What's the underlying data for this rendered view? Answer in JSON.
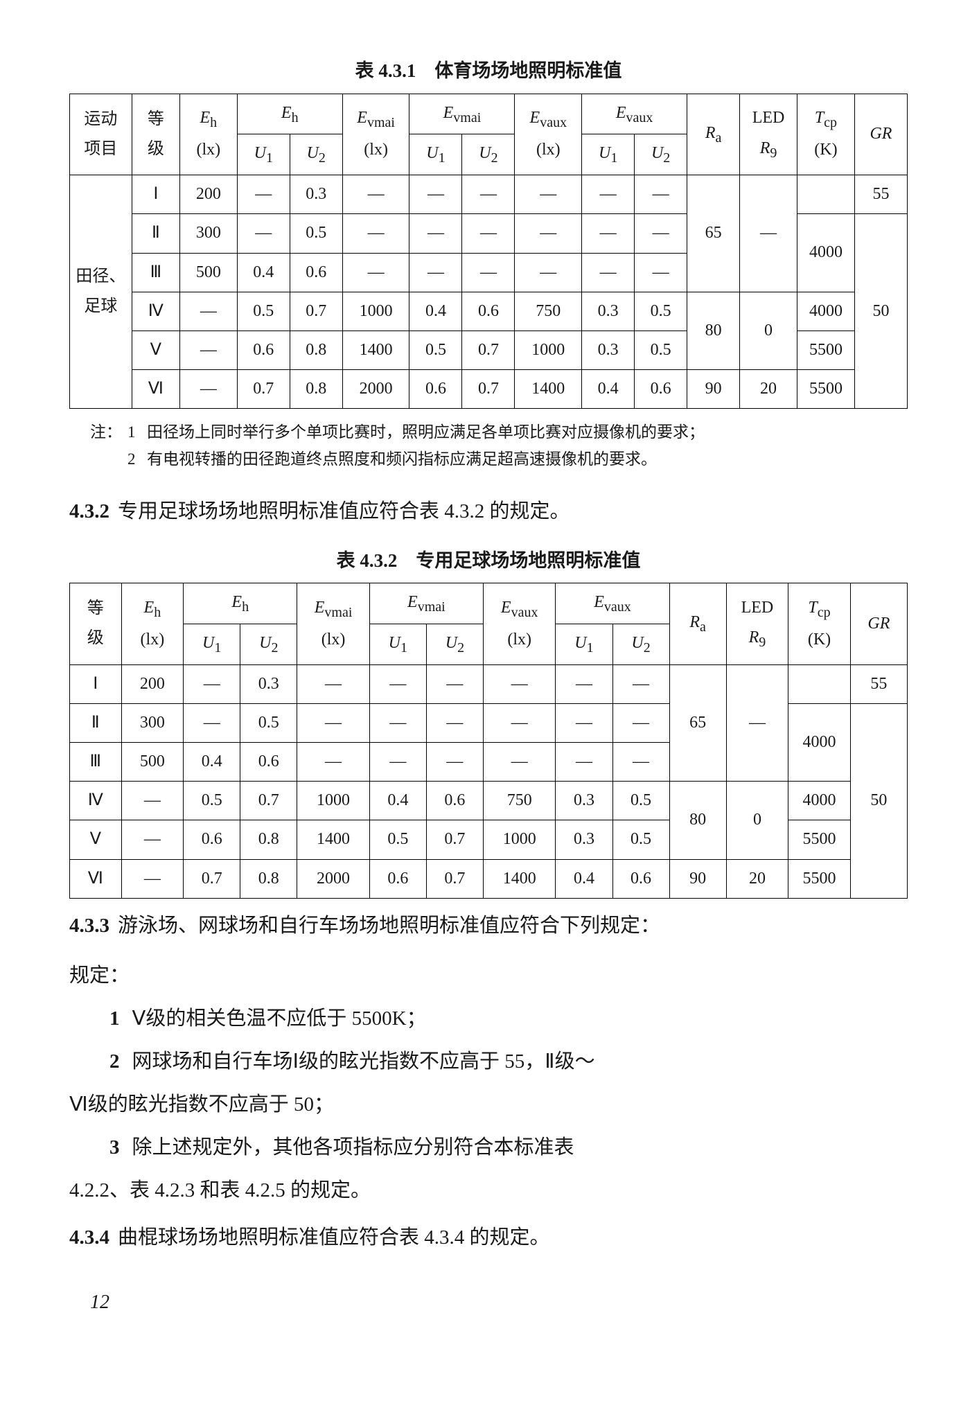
{
  "table1": {
    "caption": "表 4.3.1　体育场场地照明标准值",
    "head": {
      "sport": "运动\n项目",
      "grade": "等\n级",
      "Eh_lx": "Eₕ\n(lx)",
      "Eh_group": "Eₕ",
      "U1": "U₁",
      "U2": "U₂",
      "Evmai_lx": "E_vmai\n(lx)",
      "Evmai_group": "E_vmai",
      "Evaux_lx": "E_vaux\n(lx)",
      "Evaux_group": "E_vaux",
      "Ra": "Rₐ",
      "LED_R9": "LED\nR₉",
      "Tcp": "T_cp\n(K)",
      "GR": "GR"
    },
    "sport_label": "田径、\n足球",
    "rows": [
      {
        "g": "Ⅰ",
        "eh": "200",
        "u1": "—",
        "u2": "0.3",
        "evm": "—",
        "evm_u1": "—",
        "evm_u2": "—",
        "eva": "—",
        "eva_u1": "—",
        "eva_u2": "—"
      },
      {
        "g": "Ⅱ",
        "eh": "300",
        "u1": "—",
        "u2": "0.5",
        "evm": "—",
        "evm_u1": "—",
        "evm_u2": "—",
        "eva": "—",
        "eva_u1": "—",
        "eva_u2": "—"
      },
      {
        "g": "Ⅲ",
        "eh": "500",
        "u1": "0.4",
        "u2": "0.6",
        "evm": "—",
        "evm_u1": "—",
        "evm_u2": "—",
        "eva": "—",
        "eva_u1": "—",
        "eva_u2": "—"
      },
      {
        "g": "Ⅳ",
        "eh": "—",
        "u1": "0.5",
        "u2": "0.7",
        "evm": "1000",
        "evm_u1": "0.4",
        "evm_u2": "0.6",
        "eva": "750",
        "eva_u1": "0.3",
        "eva_u2": "0.5"
      },
      {
        "g": "Ⅴ",
        "eh": "—",
        "u1": "0.6",
        "u2": "0.8",
        "evm": "1400",
        "evm_u1": "0.5",
        "evm_u2": "0.7",
        "eva": "1000",
        "eva_u1": "0.3",
        "eva_u2": "0.5"
      },
      {
        "g": "Ⅵ",
        "eh": "—",
        "u1": "0.7",
        "u2": "0.8",
        "evm": "2000",
        "evm_u1": "0.6",
        "evm_u2": "0.7",
        "eva": "1400",
        "eva_u1": "0.4",
        "eva_u2": "0.6"
      }
    ],
    "ra": {
      "r1_3": "65",
      "r4_5": "80",
      "r6": "90"
    },
    "r9": {
      "r1_3": "—",
      "r4_5": "0",
      "r6": "20"
    },
    "tcp": {
      "r1": "",
      "r2_3": "4000",
      "r4": "4000",
      "r5": "5500",
      "r6": "5500"
    },
    "gr": {
      "r1": "55",
      "r2_6": "50"
    },
    "notes_label": "注：",
    "notes": [
      {
        "n": "1",
        "t": "田径场上同时举行多个单项比赛时，照明应满足各单项比赛对应摄像机的要求；"
      },
      {
        "n": "2",
        "t": "有电视转播的田径跑道终点照度和频闪指标应满足超高速摄像机的要求。"
      }
    ]
  },
  "sec432": {
    "num": "4.3.2",
    "text": "专用足球场场地照明标准值应符合表 4.3.2 的规定。"
  },
  "table2": {
    "caption": "表 4.3.2　专用足球场场地照明标准值",
    "rows": [
      {
        "g": "Ⅰ",
        "eh": "200",
        "u1": "—",
        "u2": "0.3",
        "evm": "—",
        "evm_u1": "—",
        "evm_u2": "—",
        "eva": "—",
        "eva_u1": "—",
        "eva_u2": "—"
      },
      {
        "g": "Ⅱ",
        "eh": "300",
        "u1": "—",
        "u2": "0.5",
        "evm": "—",
        "evm_u1": "—",
        "evm_u2": "—",
        "eva": "—",
        "eva_u1": "—",
        "eva_u2": "—"
      },
      {
        "g": "Ⅲ",
        "eh": "500",
        "u1": "0.4",
        "u2": "0.6",
        "evm": "—",
        "evm_u1": "—",
        "evm_u2": "—",
        "eva": "—",
        "eva_u1": "—",
        "eva_u2": "—"
      },
      {
        "g": "Ⅳ",
        "eh": "—",
        "u1": "0.5",
        "u2": "0.7",
        "evm": "1000",
        "evm_u1": "0.4",
        "evm_u2": "0.6",
        "eva": "750",
        "eva_u1": "0.3",
        "eva_u2": "0.5"
      },
      {
        "g": "Ⅴ",
        "eh": "—",
        "u1": "0.6",
        "u2": "0.8",
        "evm": "1400",
        "evm_u1": "0.5",
        "evm_u2": "0.7",
        "eva": "1000",
        "eva_u1": "0.3",
        "eva_u2": "0.5"
      },
      {
        "g": "Ⅵ",
        "eh": "—",
        "u1": "0.7",
        "u2": "0.8",
        "evm": "2000",
        "evm_u1": "0.6",
        "evm_u2": "0.7",
        "eva": "1400",
        "eva_u1": "0.4",
        "eva_u2": "0.6"
      }
    ],
    "ra": {
      "r1_3": "65",
      "r4_5": "80",
      "r6": "90"
    },
    "r9": {
      "r1_3": "—",
      "r4_5": "0",
      "r6": "20"
    },
    "tcp": {
      "r1": "",
      "r2_3": "4000",
      "r4": "4000",
      "r5": "5500",
      "r6": "5500"
    },
    "gr": {
      "r1": "55",
      "r2_6": "50"
    }
  },
  "sec433": {
    "num": "4.3.3",
    "text": "游泳场、网球场和自行车场场地照明标准值应符合下列规定："
  },
  "list433": [
    {
      "n": "1",
      "t": "Ⅴ级的相关色温不应低于 5500K；"
    },
    {
      "n": "2",
      "t": "网球场和自行车场Ⅰ级的眩光指数不应高于 55，Ⅱ级～"
    },
    {
      "cont": "Ⅵ级的眩光指数不应高于 50；"
    },
    {
      "n": "3",
      "t": "除上述规定外，其他各项指标应分别符合本标准表"
    },
    {
      "cont": "4.2.2、表 4.2.3 和表 4.2.5 的规定。"
    }
  ],
  "sec434": {
    "num": "4.3.4",
    "text": "曲棍球场场地照明标准值应符合表 4.3.4 的规定。"
  },
  "page": "12"
}
